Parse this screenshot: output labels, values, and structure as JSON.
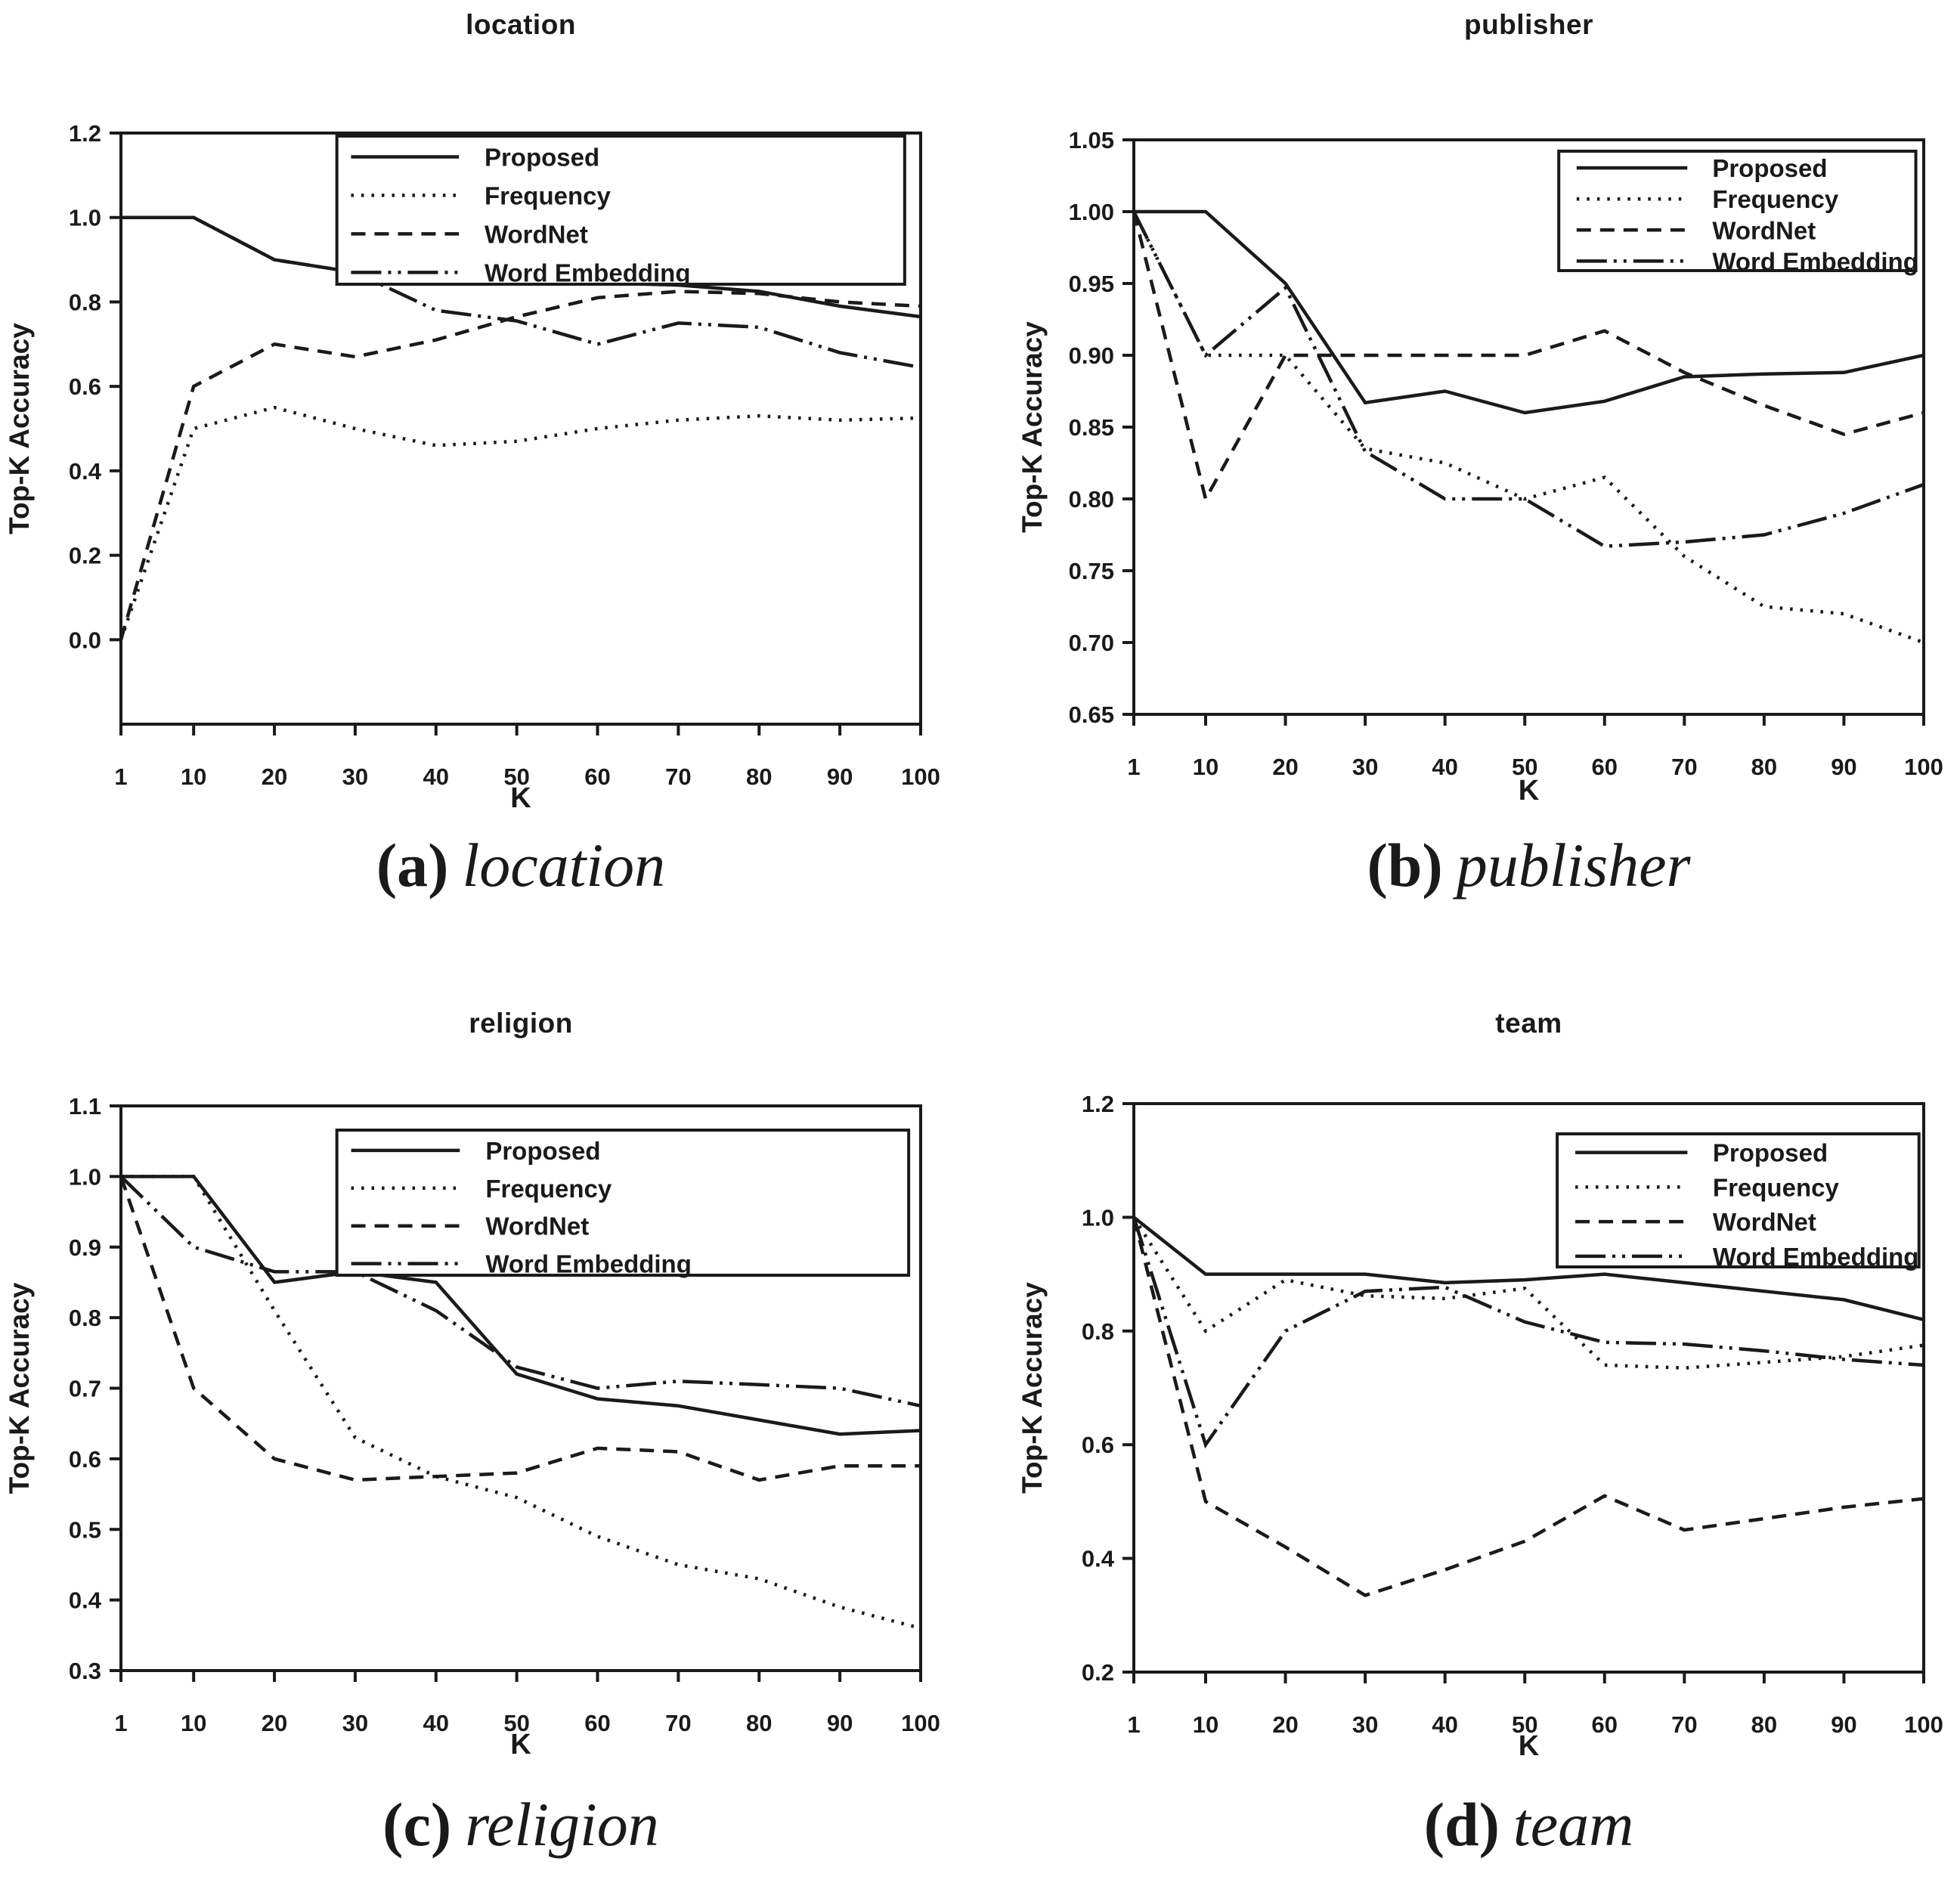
{
  "figure": {
    "ink_color": "#1a1a1a",
    "background": "#ffffff",
    "x_axis_label": "K",
    "y_axis_label": "Top-K Accuracy",
    "legend_entries": [
      "Proposed",
      "Frequency",
      "WordNet",
      "Word Embedding"
    ]
  },
  "chart_data": [
    {
      "id": "a",
      "type": "line",
      "title": "location",
      "caption": {
        "label": "(a)",
        "text": "location"
      },
      "xlabel": "K",
      "ylabel": "Top-K Accuracy",
      "x": [
        1,
        10,
        20,
        30,
        40,
        50,
        60,
        70,
        80,
        90,
        100
      ],
      "xticks": [
        "1",
        "10",
        "20",
        "30",
        "40",
        "50",
        "60",
        "70",
        "80",
        "90",
        "100"
      ],
      "yticks": [
        "0.0",
        "0.2",
        "0.4",
        "0.6",
        "0.8",
        "1.0",
        "1.2"
      ],
      "ylim": [
        -0.2,
        1.2
      ],
      "grid": false,
      "legend_position": "upper right",
      "series": [
        {
          "name": "Proposed",
          "style": "solid",
          "values": [
            1.0,
            1.0,
            0.9,
            0.87,
            0.9,
            0.9,
            0.845,
            0.84,
            0.825,
            0.79,
            0.765
          ]
        },
        {
          "name": "Frequency",
          "style": "dotted",
          "values": [
            0.0,
            0.5,
            0.55,
            0.5,
            0.46,
            0.47,
            0.5,
            0.52,
            0.53,
            0.52,
            0.525
          ]
        },
        {
          "name": "WordNet",
          "style": "dashed",
          "values": [
            0.0,
            0.6,
            0.7,
            0.67,
            0.71,
            0.765,
            0.81,
            0.825,
            0.82,
            0.8,
            0.79
          ]
        },
        {
          "name": "Word Embedding",
          "style": "dashdotdot",
          "values": [
            1.0,
            1.0,
            0.9,
            0.87,
            0.78,
            0.755,
            0.7,
            0.75,
            0.74,
            0.68,
            0.645
          ]
        }
      ]
    },
    {
      "id": "b",
      "type": "line",
      "title": "publisher",
      "caption": {
        "label": "(b)",
        "text": "publisher"
      },
      "xlabel": "K",
      "ylabel": "Top-K Accuracy",
      "x": [
        1,
        10,
        20,
        30,
        40,
        50,
        60,
        70,
        80,
        90,
        100
      ],
      "xticks": [
        "1",
        "10",
        "20",
        "30",
        "40",
        "50",
        "60",
        "70",
        "80",
        "90",
        "100"
      ],
      "yticks": [
        "0.65",
        "0.70",
        "0.75",
        "0.80",
        "0.85",
        "0.90",
        "0.95",
        "1.00",
        "1.05"
      ],
      "ylim": [
        0.65,
        1.05
      ],
      "grid": false,
      "legend_position": "upper right",
      "series": [
        {
          "name": "Proposed",
          "style": "solid",
          "values": [
            1.0,
            1.0,
            0.95,
            0.867,
            0.875,
            0.86,
            0.868,
            0.885,
            0.887,
            0.888,
            0.9
          ]
        },
        {
          "name": "Frequency",
          "style": "dotted",
          "values": [
            1.0,
            0.9,
            0.9,
            0.835,
            0.825,
            0.8,
            0.815,
            0.76,
            0.725,
            0.72,
            0.7
          ]
        },
        {
          "name": "WordNet",
          "style": "dashed",
          "values": [
            1.0,
            0.8,
            0.9,
            0.9,
            0.9,
            0.9,
            0.917,
            0.888,
            0.865,
            0.845,
            0.86
          ]
        },
        {
          "name": "Word Embedding",
          "style": "dashdotdot",
          "values": [
            1.0,
            0.9,
            0.947,
            0.833,
            0.8,
            0.8,
            0.767,
            0.77,
            0.775,
            0.79,
            0.81
          ]
        }
      ]
    },
    {
      "id": "c",
      "type": "line",
      "title": "religion",
      "caption": {
        "label": "(c)",
        "text": "religion"
      },
      "xlabel": "K",
      "ylabel": "Top-K Accuracy",
      "x": [
        1,
        10,
        20,
        30,
        40,
        50,
        60,
        70,
        80,
        90,
        100
      ],
      "xticks": [
        "1",
        "10",
        "20",
        "30",
        "40",
        "50",
        "60",
        "70",
        "80",
        "90",
        "100"
      ],
      "yticks": [
        "0.3",
        "0.4",
        "0.5",
        "0.6",
        "0.7",
        "0.8",
        "0.9",
        "1.0",
        "1.1"
      ],
      "ylim": [
        0.3,
        1.1
      ],
      "grid": false,
      "legend_position": "upper right",
      "series": [
        {
          "name": "Proposed",
          "style": "solid",
          "values": [
            1.0,
            1.0,
            0.85,
            0.865,
            0.85,
            0.72,
            0.685,
            0.675,
            0.655,
            0.635,
            0.64
          ]
        },
        {
          "name": "Frequency",
          "style": "dotted",
          "values": [
            1.0,
            1.0,
            0.81,
            0.63,
            0.575,
            0.545,
            0.49,
            0.45,
            0.43,
            0.39,
            0.36
          ]
        },
        {
          "name": "WordNet",
          "style": "dashed",
          "values": [
            1.0,
            0.7,
            0.6,
            0.57,
            0.575,
            0.58,
            0.615,
            0.61,
            0.57,
            0.59,
            0.59
          ]
        },
        {
          "name": "Word Embedding",
          "style": "dashdotdot",
          "values": [
            1.0,
            0.9,
            0.865,
            0.865,
            0.81,
            0.73,
            0.7,
            0.71,
            0.705,
            0.7,
            0.675
          ]
        }
      ]
    },
    {
      "id": "d",
      "type": "line",
      "title": "team",
      "caption": {
        "label": "(d)",
        "text": "team"
      },
      "xlabel": "K",
      "ylabel": "Top-K Accuracy",
      "x": [
        1,
        10,
        20,
        30,
        40,
        50,
        60,
        70,
        80,
        90,
        100
      ],
      "xticks": [
        "1",
        "10",
        "20",
        "30",
        "40",
        "50",
        "60",
        "70",
        "80",
        "90",
        "100"
      ],
      "yticks": [
        "0.2",
        "0.4",
        "0.6",
        "0.8",
        "1.0",
        "1.2"
      ],
      "ylim": [
        0.2,
        1.2
      ],
      "grid": false,
      "legend_position": "upper right",
      "series": [
        {
          "name": "Proposed",
          "style": "solid",
          "values": [
            1.0,
            0.9,
            0.9,
            0.9,
            0.885,
            0.89,
            0.9,
            0.885,
            0.87,
            0.855,
            0.82
          ]
        },
        {
          "name": "Frequency",
          "style": "dotted",
          "values": [
            1.0,
            0.8,
            0.89,
            0.862,
            0.857,
            0.875,
            0.74,
            0.735,
            0.745,
            0.755,
            0.775
          ]
        },
        {
          "name": "WordNet",
          "style": "dashed",
          "values": [
            1.0,
            0.5,
            0.42,
            0.335,
            0.38,
            0.43,
            0.51,
            0.45,
            0.47,
            0.49,
            0.505
          ]
        },
        {
          "name": "Word Embedding",
          "style": "dashdotdot",
          "values": [
            1.0,
            0.6,
            0.8,
            0.87,
            0.877,
            0.816,
            0.78,
            0.777,
            0.765,
            0.75,
            0.74
          ]
        }
      ]
    }
  ]
}
